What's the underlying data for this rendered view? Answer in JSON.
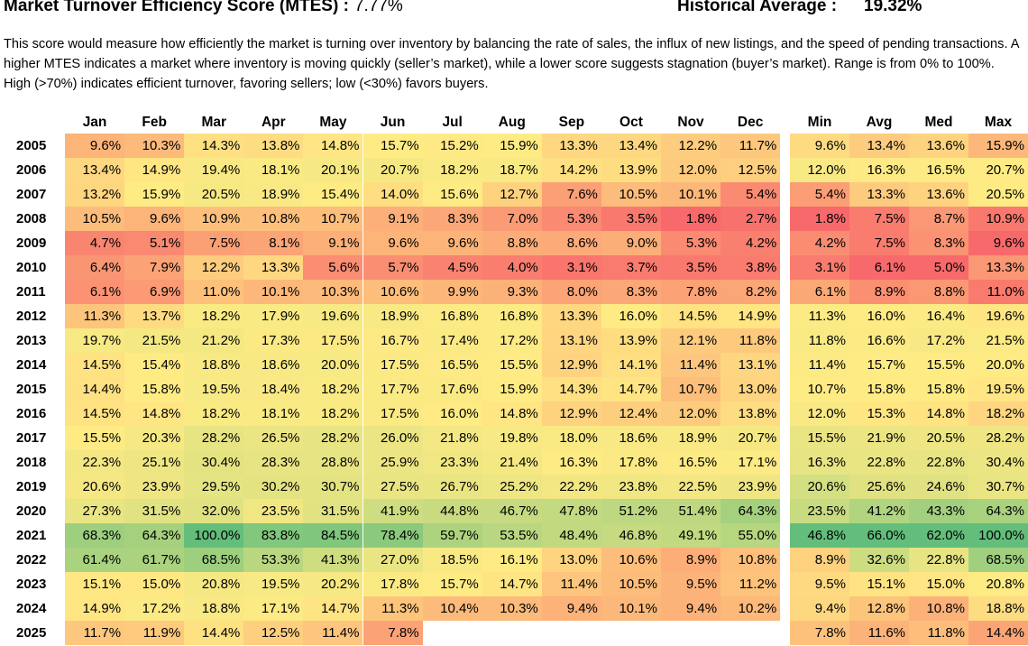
{
  "header": {
    "title": "Market Turnover Efficiency Score (MTES) :",
    "title_value": "7.77%",
    "historical_label": "Historical Average :",
    "historical_value": "19.32%"
  },
  "description": "This score would measure how efficiently the market is turning over inventory by balancing the rate of sales, the influx of new listings, and the speed of pending transactions. A higher MTES indicates a market where inventory is moving quickly (seller’s market), while a lower score suggests stagnation (buyer’s market). Range is from 0% to 100%. High (>70%) indicates efficient turnover, favoring sellers; low (<30%) favors buyers.",
  "colors": {
    "low": "#f8696b",
    "mid": "#ffeb84",
    "high": "#63be7b"
  },
  "chart_data": {
    "type": "heatmap",
    "months": [
      "Jan",
      "Feb",
      "Mar",
      "Apr",
      "May",
      "Jun",
      "Jul",
      "Aug",
      "Sep",
      "Oct",
      "Nov",
      "Dec"
    ],
    "stat_columns": [
      "Min",
      "Avg",
      "Med",
      "Max"
    ],
    "years": [
      "2005",
      "2006",
      "2007",
      "2008",
      "2009",
      "2010",
      "2011",
      "2012",
      "2013",
      "2014",
      "2015",
      "2016",
      "2017",
      "2018",
      "2019",
      "2020",
      "2021",
      "2022",
      "2023",
      "2024",
      "2025"
    ],
    "values": [
      [
        "9.6%",
        "10.3%",
        "14.3%",
        "13.8%",
        "14.8%",
        "15.7%",
        "15.2%",
        "15.9%",
        "13.3%",
        "13.4%",
        "12.2%",
        "11.7%"
      ],
      [
        "13.4%",
        "14.9%",
        "19.4%",
        "18.1%",
        "20.1%",
        "20.7%",
        "18.2%",
        "18.7%",
        "14.2%",
        "13.9%",
        "12.0%",
        "12.5%"
      ],
      [
        "13.2%",
        "15.9%",
        "20.5%",
        "18.9%",
        "15.4%",
        "14.0%",
        "15.6%",
        "12.7%",
        "7.6%",
        "10.5%",
        "10.1%",
        "5.4%"
      ],
      [
        "10.5%",
        "9.6%",
        "10.9%",
        "10.8%",
        "10.7%",
        "9.1%",
        "8.3%",
        "7.0%",
        "5.3%",
        "3.5%",
        "1.8%",
        "2.7%"
      ],
      [
        "4.7%",
        "5.1%",
        "7.5%",
        "8.1%",
        "9.1%",
        "9.6%",
        "9.6%",
        "8.8%",
        "8.6%",
        "9.0%",
        "5.3%",
        "4.2%"
      ],
      [
        "6.4%",
        "7.9%",
        "12.2%",
        "13.3%",
        "5.6%",
        "5.7%",
        "4.5%",
        "4.0%",
        "3.1%",
        "3.7%",
        "3.5%",
        "3.8%"
      ],
      [
        "6.1%",
        "6.9%",
        "11.0%",
        "10.1%",
        "10.3%",
        "10.6%",
        "9.9%",
        "9.3%",
        "8.0%",
        "8.3%",
        "7.8%",
        "8.2%"
      ],
      [
        "11.3%",
        "13.7%",
        "18.2%",
        "17.9%",
        "19.6%",
        "18.9%",
        "16.8%",
        "16.8%",
        "13.3%",
        "16.0%",
        "14.5%",
        "14.9%"
      ],
      [
        "19.7%",
        "21.5%",
        "21.2%",
        "17.3%",
        "17.5%",
        "16.7%",
        "17.4%",
        "17.2%",
        "13.1%",
        "13.9%",
        "12.1%",
        "11.8%"
      ],
      [
        "14.5%",
        "15.4%",
        "18.8%",
        "18.6%",
        "20.0%",
        "17.5%",
        "16.5%",
        "15.5%",
        "12.9%",
        "14.1%",
        "11.4%",
        "13.1%"
      ],
      [
        "14.4%",
        "15.8%",
        "19.5%",
        "18.4%",
        "18.2%",
        "17.7%",
        "17.6%",
        "15.9%",
        "14.3%",
        "14.7%",
        "10.7%",
        "13.0%"
      ],
      [
        "14.5%",
        "14.8%",
        "18.2%",
        "18.1%",
        "18.2%",
        "17.5%",
        "16.0%",
        "14.8%",
        "12.9%",
        "12.4%",
        "12.0%",
        "13.8%"
      ],
      [
        "15.5%",
        "20.3%",
        "28.2%",
        "26.5%",
        "28.2%",
        "26.0%",
        "21.8%",
        "19.8%",
        "18.0%",
        "18.6%",
        "18.9%",
        "20.7%"
      ],
      [
        "22.3%",
        "25.1%",
        "30.4%",
        "28.3%",
        "28.8%",
        "25.9%",
        "23.3%",
        "21.4%",
        "16.3%",
        "17.8%",
        "16.5%",
        "17.1%"
      ],
      [
        "20.6%",
        "23.9%",
        "29.5%",
        "30.2%",
        "30.7%",
        "27.5%",
        "26.7%",
        "25.2%",
        "22.2%",
        "23.8%",
        "22.5%",
        "23.9%"
      ],
      [
        "27.3%",
        "31.5%",
        "32.0%",
        "23.5%",
        "31.5%",
        "41.9%",
        "44.8%",
        "46.7%",
        "47.8%",
        "51.2%",
        "51.4%",
        "64.3%"
      ],
      [
        "68.3%",
        "64.3%",
        "100.0%",
        "83.8%",
        "84.5%",
        "78.4%",
        "59.7%",
        "53.5%",
        "48.4%",
        "46.8%",
        "49.1%",
        "55.0%"
      ],
      [
        "61.4%",
        "61.7%",
        "68.5%",
        "53.3%",
        "41.3%",
        "27.0%",
        "18.5%",
        "16.1%",
        "13.0%",
        "10.6%",
        "8.9%",
        "10.8%"
      ],
      [
        "15.1%",
        "15.0%",
        "20.8%",
        "19.5%",
        "20.2%",
        "17.8%",
        "15.7%",
        "14.7%",
        "11.4%",
        "10.5%",
        "9.5%",
        "11.2%"
      ],
      [
        "14.9%",
        "17.2%",
        "18.8%",
        "17.1%",
        "14.7%",
        "11.3%",
        "10.4%",
        "10.3%",
        "9.4%",
        "10.1%",
        "9.4%",
        "10.2%"
      ],
      [
        "11.7%",
        "11.9%",
        "14.4%",
        "12.5%",
        "11.4%",
        "7.8%",
        "",
        "",
        "",
        "",
        "",
        ""
      ]
    ],
    "stats": [
      [
        "9.6%",
        "13.4%",
        "13.6%",
        "15.9%"
      ],
      [
        "12.0%",
        "16.3%",
        "16.5%",
        "20.7%"
      ],
      [
        "5.4%",
        "13.3%",
        "13.6%",
        "20.5%"
      ],
      [
        "1.8%",
        "7.5%",
        "8.7%",
        "10.9%"
      ],
      [
        "4.2%",
        "7.5%",
        "8.3%",
        "9.6%"
      ],
      [
        "3.1%",
        "6.1%",
        "5.0%",
        "13.3%"
      ],
      [
        "6.1%",
        "8.9%",
        "8.8%",
        "11.0%"
      ],
      [
        "11.3%",
        "16.0%",
        "16.4%",
        "19.6%"
      ],
      [
        "11.8%",
        "16.6%",
        "17.2%",
        "21.5%"
      ],
      [
        "11.4%",
        "15.7%",
        "15.5%",
        "20.0%"
      ],
      [
        "10.7%",
        "15.8%",
        "15.8%",
        "19.5%"
      ],
      [
        "12.0%",
        "15.3%",
        "14.8%",
        "18.2%"
      ],
      [
        "15.5%",
        "21.9%",
        "20.5%",
        "28.2%"
      ],
      [
        "16.3%",
        "22.8%",
        "22.8%",
        "30.4%"
      ],
      [
        "20.6%",
        "25.6%",
        "24.6%",
        "30.7%"
      ],
      [
        "23.5%",
        "41.2%",
        "43.3%",
        "64.3%"
      ],
      [
        "46.8%",
        "66.0%",
        "62.0%",
        "100.0%"
      ],
      [
        "8.9%",
        "32.6%",
        "22.8%",
        "68.5%"
      ],
      [
        "9.5%",
        "15.1%",
        "15.0%",
        "20.8%"
      ],
      [
        "9.4%",
        "12.8%",
        "10.8%",
        "18.8%"
      ],
      [
        "7.8%",
        "11.6%",
        "11.8%",
        "14.4%"
      ]
    ]
  }
}
